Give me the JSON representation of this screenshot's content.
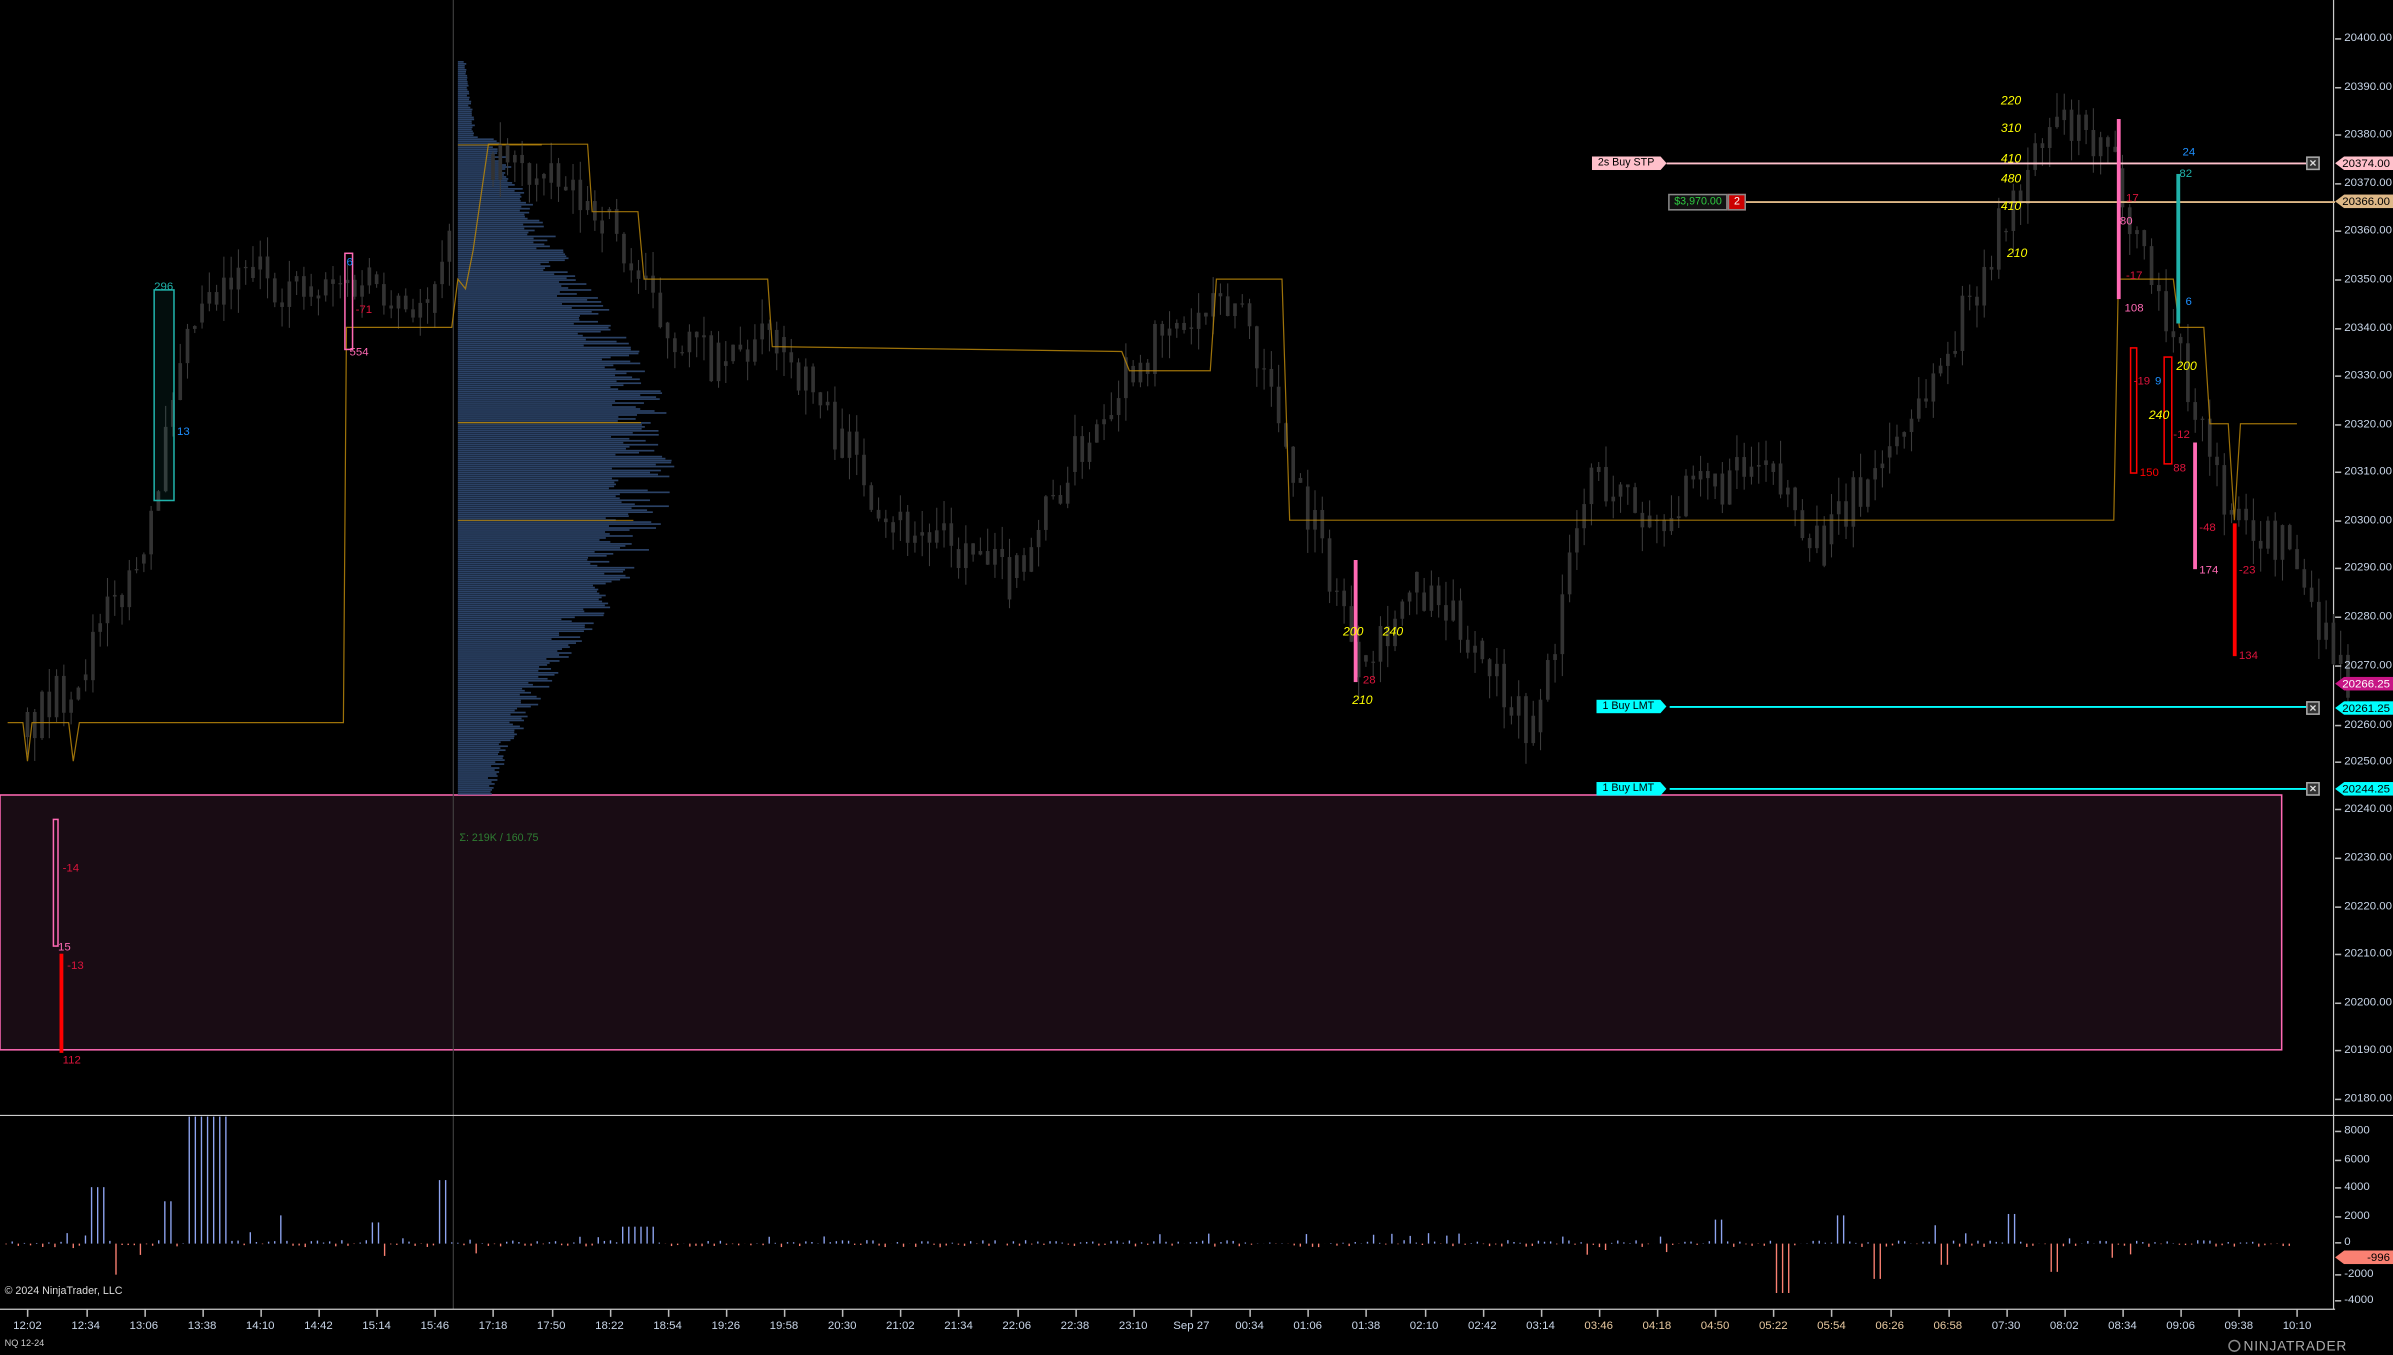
{
  "instrument": "NQ 12-24",
  "copyright": "© 2024 NinjaTrader, LLC",
  "logo_text": "NINJATRADER",
  "profile_summary": "Σ: 219K / 160.75",
  "price_axis": {
    "ticks": [
      "20400.00",
      "20390.00",
      "20380.00",
      "20370.00",
      "20360.00",
      "20350.00",
      "20340.00",
      "20330.00",
      "20320.00",
      "20310.00",
      "20300.00",
      "20290.00",
      "20280.00",
      "20270.00",
      "20260.00",
      "20250.00",
      "20240.00",
      "20230.00",
      "20220.00",
      "20210.00",
      "20200.00",
      "20190.00",
      "20180.00"
    ]
  },
  "delta_axis": {
    "ticks": [
      "8000",
      "6000",
      "4000",
      "2000",
      "0",
      "-2000",
      "-4000"
    ]
  },
  "time_axis": {
    "labels": [
      "12:02",
      "12:34",
      "13:06",
      "13:38",
      "14:10",
      "14:42",
      "15:14",
      "15:46",
      "17:18",
      "17:50",
      "18:22",
      "18:54",
      "19:26",
      "19:58",
      "20:30",
      "21:02",
      "21:34",
      "22:06",
      "22:38",
      "23:10",
      "Sep 27",
      "00:34",
      "01:06",
      "01:38",
      "02:10",
      "02:42",
      "03:14",
      "03:46",
      "04:18",
      "04:50",
      "05:22",
      "05:54",
      "06:26",
      "06:58",
      "07:30",
      "08:02",
      "08:34",
      "09:06",
      "09:38",
      "10:10"
    ]
  },
  "price_path": [
    20255,
    20268,
    20291,
    20341,
    20352,
    20346,
    20351,
    20343,
    20376,
    20370,
    20364,
    20341,
    20332,
    20338,
    20319,
    20300,
    20294,
    20288,
    20310,
    20332,
    20340,
    20345,
    20307,
    20272,
    20285,
    20275,
    20256,
    20310,
    20300,
    20307,
    20310,
    20295,
    20313,
    20332,
    20360,
    20383,
    20373,
    20338,
    20300,
    20294,
    20266.25
  ],
  "price_tags": {
    "last": "20266.25",
    "stop": "20374.00",
    "position": "20366.00",
    "limit1": "20261.25",
    "limit2": "20244.25",
    "delta": "-996"
  },
  "orders": {
    "stop": {
      "label": "2s  Buy STP",
      "price": 20374.0
    },
    "position": {
      "pnl": "$3,970.00",
      "qty": "2",
      "price": 20366.0
    },
    "limit1": {
      "label": "1  Buy LMT",
      "price": 20261.25
    },
    "limit2": {
      "label": "1  Buy LMT",
      "price": 20244.25
    }
  },
  "current_price": 20266.25,
  "current_delta": -996,
  "colors": {
    "stop": "#ffc0cb",
    "position": "#deb887",
    "limit": "#00ffff",
    "last": "#c71585",
    "delta_neg": "#fa8072",
    "delta_pos": "#8ea4f0",
    "zone": "#ff69b4",
    "step_line": "#b8860b"
  },
  "annotations": [
    {
      "text": "296",
      "color": "#20b2aa"
    },
    {
      "text": "13",
      "color": "#1e90ff"
    },
    {
      "text": "6",
      "color": "#1e90ff"
    },
    {
      "text": "-71",
      "color": "#dc143c"
    },
    {
      "text": "554",
      "color": "#ff69b4"
    },
    {
      "text": "-14",
      "color": "#dc143c"
    },
    {
      "text": "15",
      "color": "#ff69b4"
    },
    {
      "text": "-13",
      "color": "#dc143c"
    },
    {
      "text": "112",
      "color": "#dc143c"
    },
    {
      "text": "200",
      "color": "#ffff00"
    },
    {
      "text": "240",
      "color": "#ffff00"
    },
    {
      "text": "210",
      "color": "#ffff00"
    },
    {
      "text": "28",
      "color": "#dc143c"
    },
    {
      "text": "220",
      "color": "#ffff00"
    },
    {
      "text": "310",
      "color": "#ffff00"
    },
    {
      "text": "410",
      "color": "#ffff00"
    },
    {
      "text": "480",
      "color": "#ffff00"
    },
    {
      "text": "410",
      "color": "#ffff00"
    },
    {
      "text": "210",
      "color": "#ffff00"
    },
    {
      "text": "17",
      "color": "#dc143c"
    },
    {
      "text": "80",
      "color": "#ff69b4"
    },
    {
      "text": "-17",
      "color": "#dc143c"
    },
    {
      "text": "108",
      "color": "#ff69b4"
    },
    {
      "text": "150",
      "color": "#ff0000"
    },
    {
      "text": "-19",
      "color": "#dc143c"
    },
    {
      "text": "9",
      "color": "#1e90ff"
    },
    {
      "text": "24",
      "color": "#1e90ff"
    },
    {
      "text": "82",
      "color": "#20b2aa"
    },
    {
      "text": "6",
      "color": "#1e90ff"
    },
    {
      "text": "200",
      "color": "#ffff00"
    },
    {
      "text": "240",
      "color": "#ffff00"
    },
    {
      "text": "-12",
      "color": "#dc143c"
    },
    {
      "text": "88",
      "color": "#dc143c"
    },
    {
      "text": "-48",
      "color": "#dc143c"
    },
    {
      "text": "174",
      "color": "#ff69b4"
    },
    {
      "text": "-23",
      "color": "#dc143c"
    },
    {
      "text": "134",
      "color": "#dc143c"
    }
  ]
}
